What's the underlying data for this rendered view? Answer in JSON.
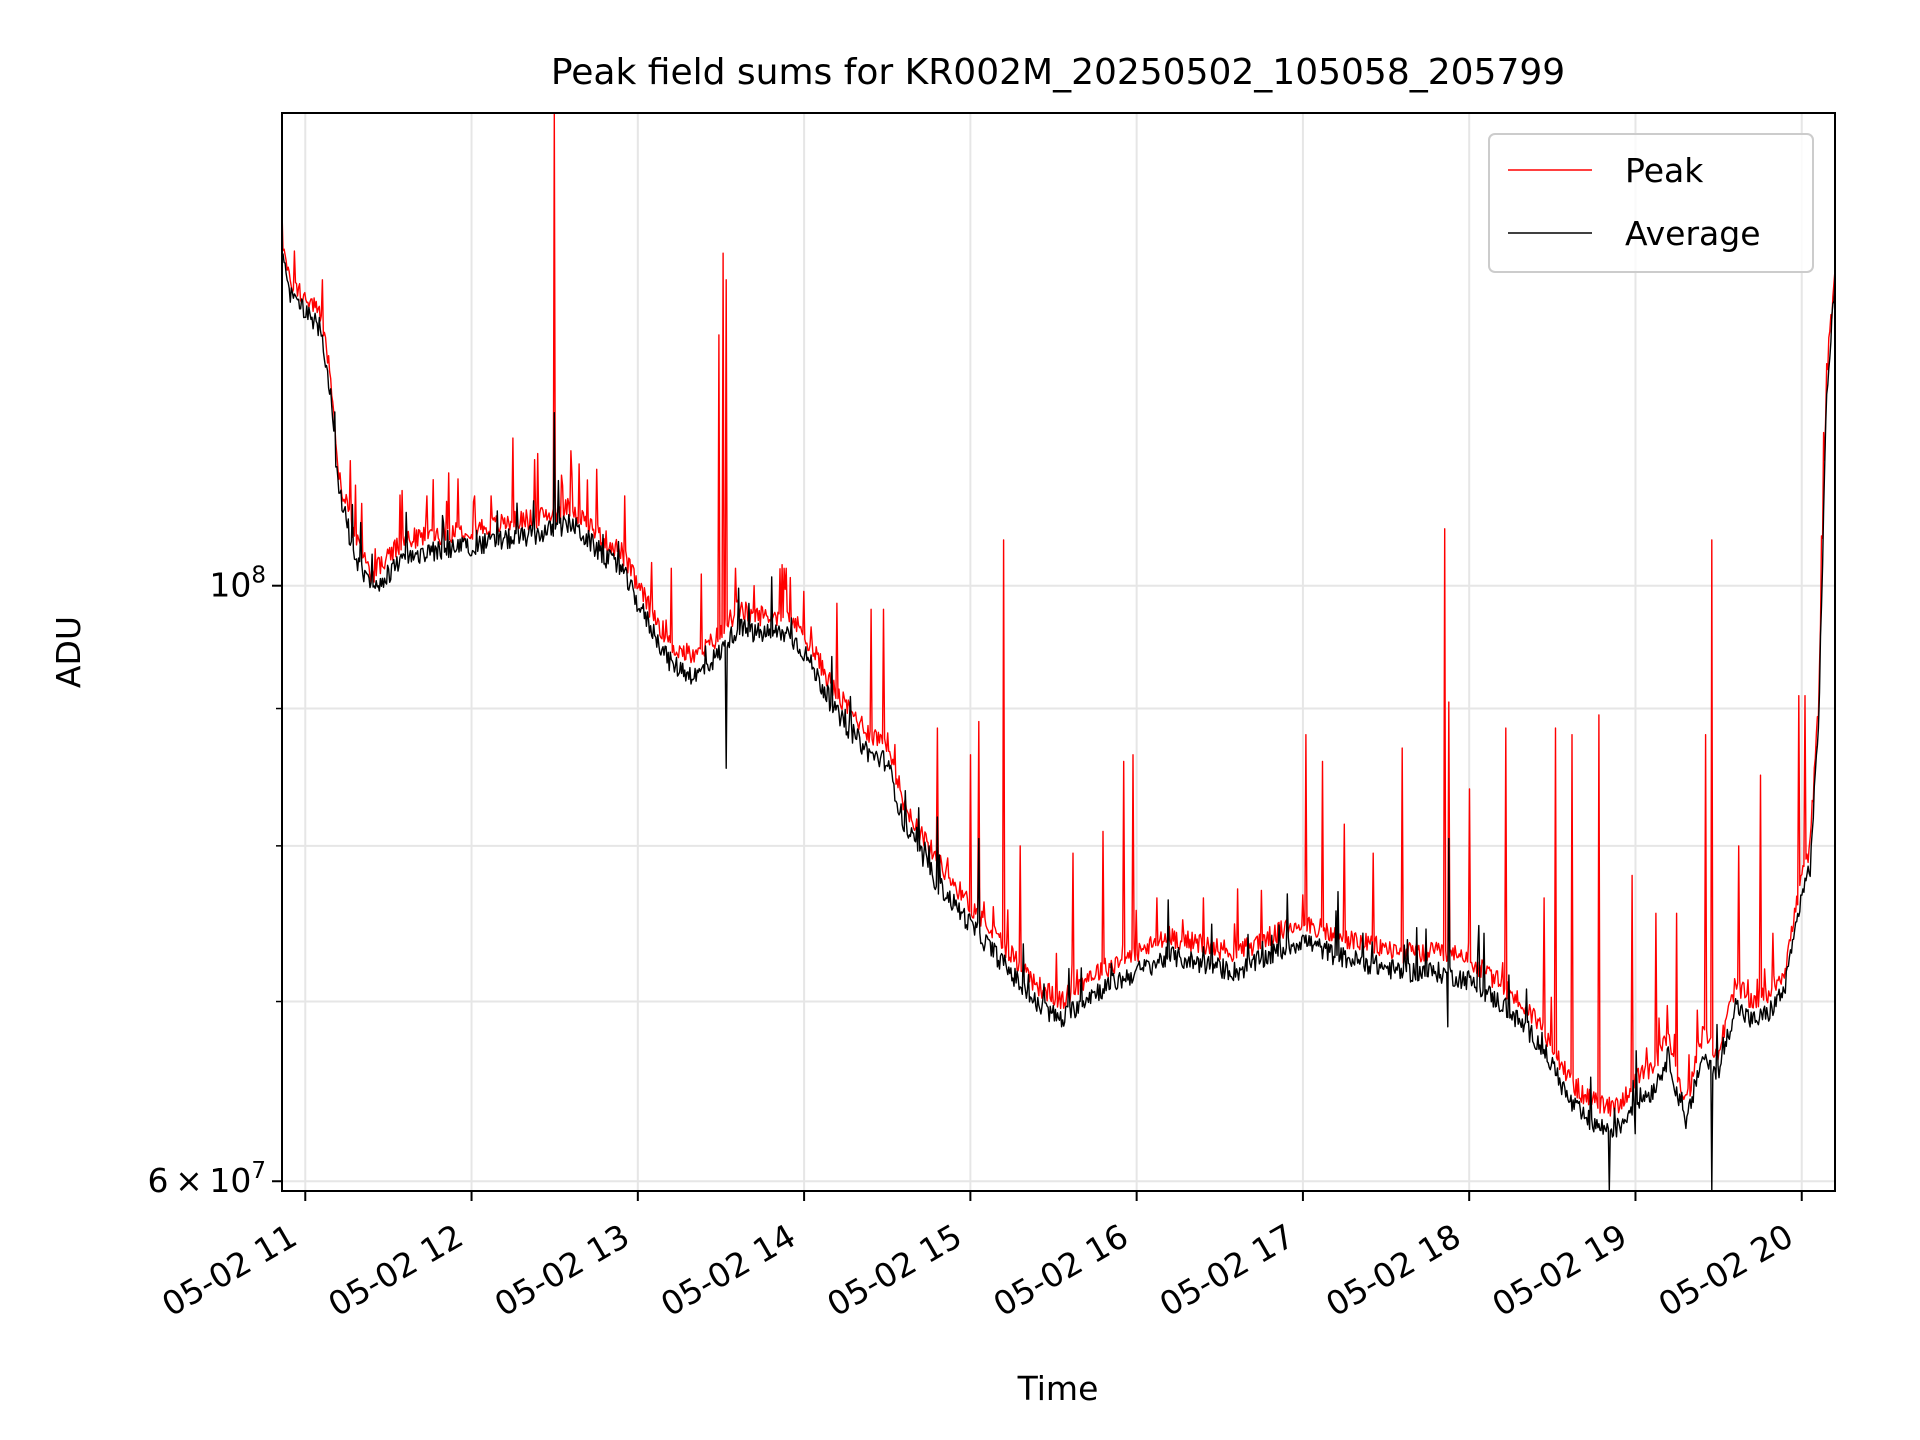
{
  "chart_data": {
    "type": "line",
    "title": "Peak field sums for KR002M_20250502_105058_205799",
    "xlabel": "Time",
    "ylabel": "ADU",
    "x_range_hours": [
      10.86,
      20.2
    ],
    "ylim": [
      59500000,
      150000000
    ],
    "yscale": "log",
    "grid": true,
    "legend_position": "upper right",
    "x_ticks": [
      {
        "value": 11,
        "label": "05-02 11"
      },
      {
        "value": 12,
        "label": "05-02 12"
      },
      {
        "value": 13,
        "label": "05-02 13"
      },
      {
        "value": 14,
        "label": "05-02 14"
      },
      {
        "value": 15,
        "label": "05-02 15"
      },
      {
        "value": 16,
        "label": "05-02 16"
      },
      {
        "value": 17,
        "label": "05-02 17"
      },
      {
        "value": 18,
        "label": "05-02 18"
      },
      {
        "value": 19,
        "label": "05-02 19"
      },
      {
        "value": 20,
        "label": "05-02 20"
      }
    ],
    "y_major_ticks": [
      {
        "value": 60000000,
        "base": "6",
        "sep": "×",
        "pow": "10",
        "exp": "7"
      },
      {
        "value": 100000000,
        "base": "",
        "sep": "",
        "pow": "10",
        "exp": "8"
      }
    ],
    "y_minor_ticks": [
      70000000,
      80000000,
      90000000
    ],
    "series": [
      {
        "name": "Peak",
        "color": "#ff0000",
        "x_hours": [
          10.86,
          10.9,
          11.0,
          11.1,
          11.15,
          11.2,
          11.3,
          11.4,
          11.5,
          11.6,
          11.8,
          12.0,
          12.2,
          12.4,
          12.6,
          12.8,
          12.9,
          13.0,
          13.2,
          13.35,
          13.5,
          13.6,
          13.7,
          13.9,
          14.0,
          14.2,
          14.4,
          14.5,
          14.6,
          14.8,
          15.0,
          15.2,
          15.4,
          15.55,
          15.7,
          15.9,
          16.0,
          16.2,
          16.4,
          16.6,
          16.8,
          17.0,
          17.2,
          17.4,
          17.6,
          17.8,
          18.0,
          18.2,
          18.4,
          18.5,
          18.6,
          18.7,
          18.8,
          18.9,
          19.0,
          19.1,
          19.2,
          19.3,
          19.4,
          19.5,
          19.6,
          19.7,
          19.8,
          19.9,
          20.0,
          20.05,
          20.1,
          20.15,
          20.2
        ],
        "y": [
          135000000,
          130000000,
          128000000,
          126000000,
          120000000,
          110000000,
          104000000,
          101000000,
          102500000,
          104000000,
          104500000,
          105000000,
          105500000,
          106000000,
          107000000,
          104000000,
          103000000,
          100000000,
          95000000,
          94000000,
          96000000,
          98000000,
          97500000,
          97500000,
          96000000,
          91000000,
          88000000,
          87500000,
          83000000,
          79000000,
          76000000,
          73500000,
          71000000,
          70000000,
          71500000,
          72500000,
          73000000,
          74000000,
          73500000,
          73000000,
          74000000,
          75000000,
          74000000,
          73500000,
          73000000,
          73000000,
          72500000,
          71000000,
          69000000,
          67500000,
          65500000,
          64500000,
          64000000,
          64000000,
          65500000,
          66000000,
          68000000,
          64000000,
          68000000,
          67000000,
          71000000,
          70000000,
          70500000,
          72000000,
          78000000,
          80000000,
          90000000,
          120000000,
          131000000
        ],
        "spikes": [
          {
            "x": 10.86,
            "y": 138000000
          },
          {
            "x": 11.1,
            "y": 130000000
          },
          {
            "x": 11.3,
            "y": 109000000
          },
          {
            "x": 11.58,
            "y": 108500000
          },
          {
            "x": 11.73,
            "y": 108000000
          },
          {
            "x": 11.85,
            "y": 107500000
          },
          {
            "x": 12.02,
            "y": 108000000
          },
          {
            "x": 12.12,
            "y": 108000000
          },
          {
            "x": 12.25,
            "y": 113500000
          },
          {
            "x": 12.4,
            "y": 112000000
          },
          {
            "x": 12.5,
            "y": 150000000
          },
          {
            "x": 12.65,
            "y": 111000000
          },
          {
            "x": 12.75,
            "y": 110500000
          },
          {
            "x": 12.92,
            "y": 108000000
          },
          {
            "x": 13.08,
            "y": 102000000
          },
          {
            "x": 13.2,
            "y": 101500000
          },
          {
            "x": 13.38,
            "y": 101000000
          },
          {
            "x": 13.49,
            "y": 124000000
          },
          {
            "x": 13.51,
            "y": 133000000
          },
          {
            "x": 13.53,
            "y": 130000000
          },
          {
            "x": 13.7,
            "y": 100000000
          },
          {
            "x": 13.88,
            "y": 101500000
          },
          {
            "x": 14.0,
            "y": 99500000
          },
          {
            "x": 14.2,
            "y": 98500000
          },
          {
            "x": 14.4,
            "y": 98000000
          },
          {
            "x": 14.48,
            "y": 98000000
          },
          {
            "x": 14.8,
            "y": 88500000
          },
          {
            "x": 15.0,
            "y": 86500000
          },
          {
            "x": 15.05,
            "y": 89000000
          },
          {
            "x": 15.2,
            "y": 104000000
          },
          {
            "x": 15.3,
            "y": 80000000
          },
          {
            "x": 15.62,
            "y": 79500000
          },
          {
            "x": 15.8,
            "y": 81000000
          },
          {
            "x": 15.92,
            "y": 86000000
          },
          {
            "x": 15.98,
            "y": 86500000
          },
          {
            "x": 16.12,
            "y": 76500000
          },
          {
            "x": 16.75,
            "y": 77000000
          },
          {
            "x": 17.02,
            "y": 88000000
          },
          {
            "x": 17.12,
            "y": 86000000
          },
          {
            "x": 17.25,
            "y": 81500000
          },
          {
            "x": 17.42,
            "y": 79500000
          },
          {
            "x": 17.6,
            "y": 87000000
          },
          {
            "x": 17.85,
            "y": 105000000
          },
          {
            "x": 17.88,
            "y": 90500000
          },
          {
            "x": 18.0,
            "y": 84000000
          },
          {
            "x": 18.22,
            "y": 88500000
          },
          {
            "x": 18.45,
            "y": 76500000
          },
          {
            "x": 18.52,
            "y": 88500000
          },
          {
            "x": 18.62,
            "y": 88000000
          },
          {
            "x": 18.78,
            "y": 89500000
          },
          {
            "x": 18.98,
            "y": 78000000
          },
          {
            "x": 19.12,
            "y": 75500000
          },
          {
            "x": 19.25,
            "y": 75500000
          },
          {
            "x": 19.42,
            "y": 88000000
          },
          {
            "x": 19.46,
            "y": 104000000
          },
          {
            "x": 19.62,
            "y": 80000000
          },
          {
            "x": 19.75,
            "y": 85000000
          },
          {
            "x": 19.98,
            "y": 91000000
          },
          {
            "x": 20.02,
            "y": 91000000
          }
        ],
        "dips": []
      },
      {
        "name": "Average",
        "color": "#000000",
        "x_hours": [
          10.86,
          10.9,
          11.0,
          11.1,
          11.15,
          11.2,
          11.3,
          11.4,
          11.5,
          11.6,
          11.8,
          12.0,
          12.2,
          12.4,
          12.6,
          12.8,
          12.9,
          13.0,
          13.2,
          13.35,
          13.5,
          13.6,
          13.7,
          13.9,
          14.0,
          14.2,
          14.4,
          14.5,
          14.6,
          14.8,
          15.0,
          15.2,
          15.4,
          15.55,
          15.7,
          15.9,
          16.0,
          16.2,
          16.4,
          16.6,
          16.8,
          17.0,
          17.2,
          17.4,
          17.6,
          17.8,
          18.0,
          18.2,
          18.4,
          18.5,
          18.6,
          18.7,
          18.8,
          18.9,
          19.0,
          19.1,
          19.2,
          19.3,
          19.4,
          19.5,
          19.6,
          19.7,
          19.8,
          19.9,
          20.0,
          20.05,
          20.1,
          20.15,
          20.2
        ],
        "y": [
          133000000,
          128500000,
          126500000,
          124500000,
          118000000,
          108500000,
          102500000,
          99500000,
          101000000,
          102500000,
          103000000,
          103500000,
          104000000,
          104500000,
          105500000,
          102500000,
          101500000,
          98500000,
          93500000,
          92500000,
          94500000,
          96500000,
          96000000,
          96000000,
          94500000,
          89500000,
          86500000,
          86000000,
          81500000,
          77500000,
          74800000,
          72300000,
          69800000,
          68900000,
          70300000,
          71300000,
          71800000,
          72800000,
          72300000,
          71800000,
          72800000,
          73800000,
          72800000,
          72300000,
          71800000,
          71800000,
          71300000,
          69800000,
          67800000,
          66300000,
          64300000,
          63300000,
          62800000,
          62800000,
          64300000,
          64800000,
          66800000,
          62800000,
          66800000,
          65800000,
          69800000,
          68800000,
          69300000,
          70800000,
          76800000,
          78500000,
          88500000,
          118000000,
          129500000
        ],
        "spikes": [
          {
            "x": 12.5,
            "y": 116000000
          },
          {
            "x": 13.53,
            "y": 104000000
          },
          {
            "x": 14.8,
            "y": 82000000
          },
          {
            "x": 15.05,
            "y": 80500000
          },
          {
            "x": 17.88,
            "y": 80500000
          },
          {
            "x": 19.46,
            "y": 84000000
          }
        ],
        "dips": [
          {
            "x": 13.53,
            "y": 85500000
          },
          {
            "x": 18.84,
            "y": 59500000
          },
          {
            "x": 19.46,
            "y": 59500000
          },
          {
            "x": 17.87,
            "y": 68500000
          },
          {
            "x": 15.55,
            "y": 68500000
          },
          {
            "x": 19.0,
            "y": 62500000
          }
        ]
      }
    ]
  }
}
